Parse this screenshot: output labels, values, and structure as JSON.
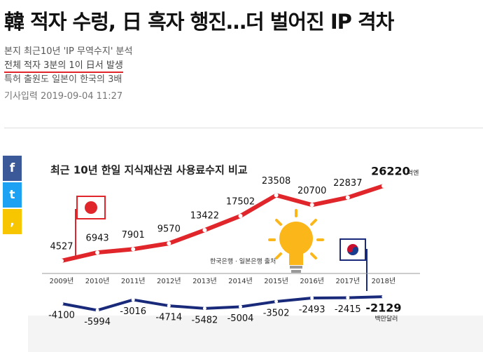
{
  "header": {
    "title": "韓 적자 수렁, 日 흑자 행진…더 벌어진 IP 격차",
    "subtitles": [
      "본지 최근10년 'IP 무역수지' 분석",
      "전체 적자 3분의 1이 日서 발생",
      "특허 출원도 일본이 한국의 3배"
    ],
    "date": "기사입력 2019-09-04 11:27"
  },
  "chart_data": {
    "type": "line",
    "title": "최근 10년 한일 지식재산권 사용료수지 비교",
    "categories": [
      "2009년",
      "2010년",
      "2011년",
      "2012년",
      "2013년",
      "2014년",
      "2015년",
      "2016년",
      "2017년",
      "2018년"
    ],
    "series": [
      {
        "name": "일본",
        "unit": "억엔",
        "color": "#e0262b",
        "values": [
          4527,
          6943,
          7901,
          9570,
          13422,
          17502,
          23508,
          20700,
          22837,
          26220
        ]
      },
      {
        "name": "한국",
        "unit": "백만달러",
        "color": "#1a2a7a",
        "axis": "y2",
        "values": [
          -4100,
          -5994,
          -3016,
          -4714,
          -5482,
          -5004,
          -3502,
          -2493,
          -2415,
          -2129
        ]
      }
    ],
    "ylim": [
      -11300,
      31300
    ],
    "y2lim": [
      -7500,
      34500
    ],
    "source": "한국은행 · 일본은행 출처"
  }
}
